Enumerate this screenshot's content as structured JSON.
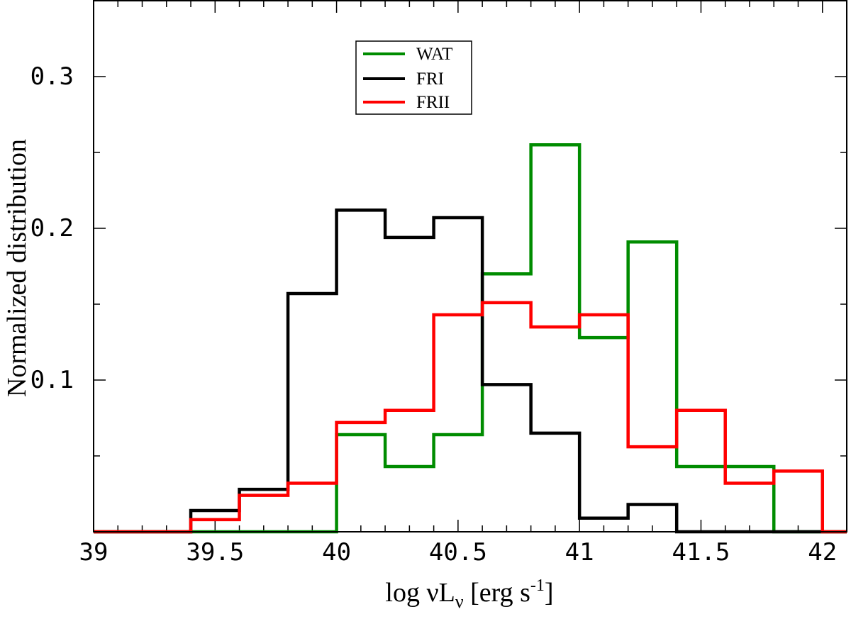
{
  "chart_data": {
    "type": "histogram-step",
    "xlabel": "log νLν [erg s-1]",
    "xlabel_parts": {
      "prefix": "log ",
      "nu": "ν",
      "L": "L",
      "sub": "ν",
      "mid": " [erg s",
      "sup": "-1",
      "suffix": "]"
    },
    "ylabel": "Normalized distribution",
    "xlim": [
      39,
      42.1
    ],
    "ylim": [
      0,
      0.35
    ],
    "x_ticks": [
      39,
      39.5,
      40,
      40.5,
      41,
      41.5,
      42
    ],
    "x_tick_labels": [
      "39",
      "39.5",
      "40",
      "40.5",
      "41",
      "41.5",
      "42"
    ],
    "x_minor_step": 0.1,
    "y_ticks": [
      0.1,
      0.2,
      0.3
    ],
    "y_tick_labels": [
      "0.1",
      "0.2",
      "0.3"
    ],
    "y_minor_step": 0.05,
    "legend_position": "top-center",
    "bin_edges": [
      39,
      39.2,
      39.4,
      39.6,
      39.8,
      40,
      40.2,
      40.4,
      40.6,
      40.8,
      41,
      41.2,
      41.4,
      41.6,
      41.8,
      42,
      42.1
    ],
    "series": [
      {
        "name": "WAT",
        "color": "#008c00",
        "values": [
          0,
          0,
          0,
          0,
          0,
          0.064,
          0.043,
          0.064,
          0.17,
          0.255,
          0.128,
          0.191,
          0.043,
          0.043,
          0,
          0
        ]
      },
      {
        "name": "FRI",
        "color": "#000000",
        "values": [
          0,
          0,
          0.014,
          0.028,
          0.157,
          0.212,
          0.194,
          0.207,
          0.097,
          0.065,
          0.009,
          0.018,
          0,
          0,
          0,
          0
        ]
      },
      {
        "name": "FRII",
        "color": "#ff0000",
        "values": [
          0,
          0,
          0.008,
          0.024,
          0.032,
          0.072,
          0.08,
          0.143,
          0.151,
          0.135,
          0.143,
          0.056,
          0.08,
          0.032,
          0.04,
          0
        ]
      }
    ]
  }
}
